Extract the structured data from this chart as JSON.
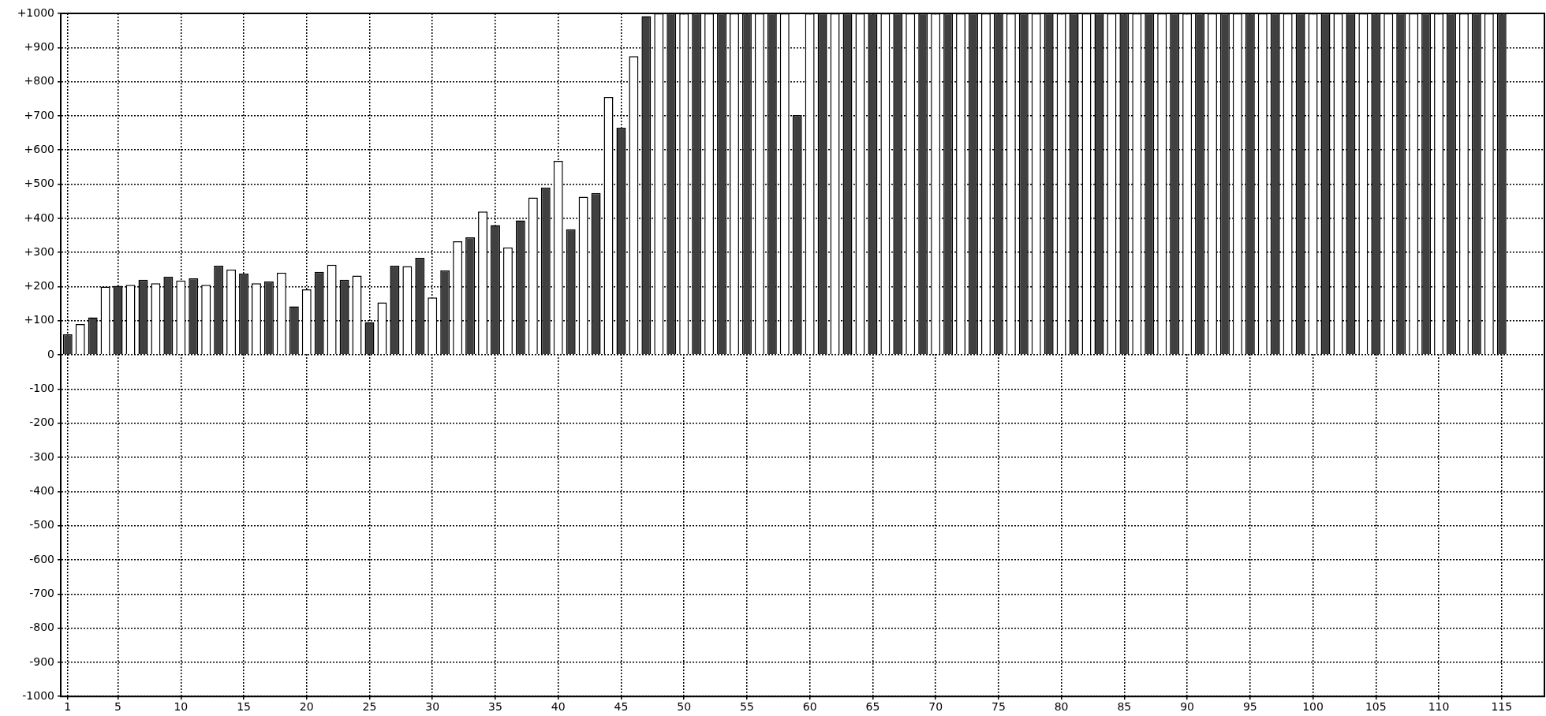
{
  "chart_data": {
    "type": "bar",
    "x": [
      1,
      2,
      3,
      4,
      5,
      6,
      7,
      8,
      9,
      10,
      11,
      12,
      13,
      14,
      15,
      16,
      17,
      18,
      19,
      20,
      21,
      22,
      23,
      24,
      25,
      26,
      27,
      28,
      29,
      30,
      31,
      32,
      33,
      34,
      35,
      36,
      37,
      38,
      39,
      40,
      41,
      42,
      43,
      44,
      45,
      46,
      47,
      48,
      49,
      50,
      51,
      52,
      53,
      54,
      55,
      56,
      57,
      58,
      59,
      60,
      61,
      62,
      63,
      64,
      65,
      66,
      67,
      68,
      69,
      70,
      71,
      72,
      73,
      74,
      75,
      76,
      77,
      78,
      79,
      80,
      81,
      82,
      83,
      84,
      85,
      86,
      87,
      88,
      89,
      90,
      91,
      92,
      93,
      94,
      95,
      96,
      97,
      98,
      99,
      100,
      101,
      102,
      103,
      104,
      105,
      106,
      107,
      108,
      109,
      110,
      111,
      112,
      113,
      114,
      115
    ],
    "values": [
      60,
      90,
      110,
      200,
      202,
      205,
      220,
      210,
      229,
      218,
      224,
      205,
      261,
      250,
      238,
      210,
      215,
      241,
      142,
      192,
      243,
      264,
      220,
      232,
      96,
      154,
      261,
      260,
      284,
      168,
      247,
      333,
      344,
      420,
      380,
      315,
      394,
      461,
      490,
      568,
      368,
      463,
      474,
      755,
      665,
      875,
      992,
      1000,
      1000,
      1000,
      1000,
      1000,
      1000,
      1000,
      1000,
      1000,
      1000,
      1000,
      702,
      1000,
      1000,
      1000,
      1000,
      1000,
      1000,
      1000,
      1000,
      1000,
      1000,
      1000,
      1000,
      1000,
      1000,
      1000,
      1000,
      1000,
      1000,
      1000,
      1000,
      1000,
      1000,
      1000,
      1000,
      1000,
      1000,
      1000,
      1000,
      1000,
      1000,
      1000,
      1000,
      1000,
      1000,
      1000,
      1000,
      1000,
      1000,
      1000,
      1000,
      1000,
      1000,
      1000,
      1000,
      1000,
      1000,
      1000,
      1000,
      1000,
      1000,
      1000,
      1000,
      1000,
      1000,
      1000,
      1000
    ],
    "colors": [
      "#404040",
      "#ffffff",
      "#404040",
      "#ffffff",
      "#404040",
      "#ffffff",
      "#404040",
      "#ffffff",
      "#404040",
      "#ffffff",
      "#404040",
      "#ffffff",
      "#404040",
      "#ffffff",
      "#404040",
      "#ffffff",
      "#404040",
      "#ffffff",
      "#404040",
      "#ffffff",
      "#404040",
      "#ffffff",
      "#404040",
      "#ffffff",
      "#404040",
      "#ffffff",
      "#404040",
      "#ffffff",
      "#404040",
      "#ffffff",
      "#404040",
      "#ffffff",
      "#404040",
      "#ffffff",
      "#404040",
      "#ffffff",
      "#404040",
      "#ffffff",
      "#404040",
      "#ffffff",
      "#404040",
      "#ffffff",
      "#404040",
      "#ffffff",
      "#404040",
      "#ffffff",
      "#404040",
      "#ffffff",
      "#404040",
      "#ffffff",
      "#404040",
      "#ffffff",
      "#404040",
      "#ffffff",
      "#404040",
      "#ffffff",
      "#404040",
      "#ffffff",
      "#404040",
      "#ffffff",
      "#404040",
      "#ffffff",
      "#404040",
      "#ffffff",
      "#404040",
      "#ffffff",
      "#404040",
      "#ffffff",
      "#404040",
      "#ffffff",
      "#404040",
      "#ffffff",
      "#404040",
      "#ffffff",
      "#404040",
      "#ffffff",
      "#404040",
      "#ffffff",
      "#404040",
      "#ffffff",
      "#404040",
      "#ffffff",
      "#404040",
      "#ffffff",
      "#404040",
      "#ffffff",
      "#404040",
      "#ffffff",
      "#404040",
      "#ffffff",
      "#404040",
      "#ffffff",
      "#404040",
      "#ffffff",
      "#404040",
      "#ffffff",
      "#404040",
      "#ffffff",
      "#404040",
      "#ffffff",
      "#404040",
      "#ffffff",
      "#404040",
      "#ffffff",
      "#404040",
      "#ffffff",
      "#404040",
      "#ffffff",
      "#404040",
      "#ffffff",
      "#404040",
      "#ffffff",
      "#404040",
      "#ffffff",
      "#404040"
    ],
    "xlim": [
      0.45,
      118.4
    ],
    "xticks": [
      1,
      5,
      10,
      15,
      20,
      25,
      30,
      35,
      40,
      45,
      50,
      55,
      60,
      65,
      70,
      75,
      80,
      85,
      90,
      95,
      100,
      105,
      110,
      115
    ],
    "ylim": [
      -1000,
      1000
    ],
    "yticks": [
      {
        "value": -1000,
        "label": "-1000"
      },
      {
        "value": -900,
        "label": "-900"
      },
      {
        "value": -800,
        "label": "-800"
      },
      {
        "value": -700,
        "label": "-700"
      },
      {
        "value": -600,
        "label": "-600"
      },
      {
        "value": -500,
        "label": "-500"
      },
      {
        "value": -400,
        "label": "-400"
      },
      {
        "value": -300,
        "label": "-300"
      },
      {
        "value": -200,
        "label": "-200"
      },
      {
        "value": -100,
        "label": "-100"
      },
      {
        "value": 0,
        "label": "0"
      },
      {
        "value": 100,
        "label": "+100"
      },
      {
        "value": 200,
        "label": "+200"
      },
      {
        "value": 300,
        "label": "+300"
      },
      {
        "value": 400,
        "label": "+400"
      },
      {
        "value": 500,
        "label": "+500"
      },
      {
        "value": 600,
        "label": "+600"
      },
      {
        "value": 700,
        "label": "+700"
      },
      {
        "value": 800,
        "label": "+800"
      },
      {
        "value": 900,
        "label": "+900"
      },
      {
        "value": 1000,
        "label": "+1000"
      }
    ],
    "grid": true
  }
}
